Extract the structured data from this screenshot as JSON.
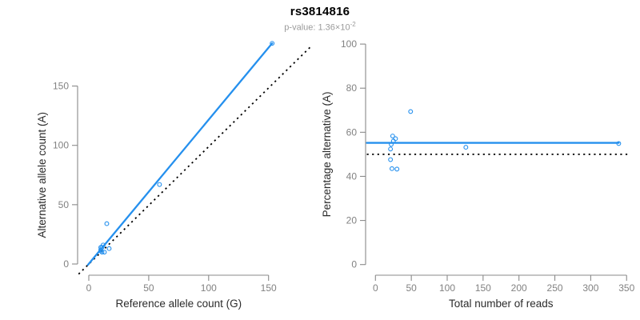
{
  "header": {
    "title": "rs3814816",
    "subtitle_base": "p-value: 1.36×10",
    "subtitle_exp": "-2"
  },
  "colors": {
    "accent_blue": "#2590ee",
    "dashed_black": "#000000",
    "axis_line": "#8a8a8a",
    "tick_label": "#828282",
    "axis_title": "#2b2b2b",
    "subtitle_gray": "#9a9a9a",
    "background": "#ffffff"
  },
  "chart_data": [
    {
      "type": "scatter",
      "panel": "left",
      "xlabel": "Reference allele count (G)",
      "ylabel": "Alternative allele count (A)",
      "xlim": [
        0,
        150
      ],
      "ylim": [
        0,
        150
      ],
      "xticks": [
        0,
        50,
        100,
        150
      ],
      "yticks": [
        0,
        50,
        100,
        150
      ],
      "grid": false,
      "legend": null,
      "point_color": "#2590ee",
      "points": [
        [
          10,
          14
        ],
        [
          12,
          16
        ],
        [
          11,
          14
        ],
        [
          10,
          12
        ],
        [
          10,
          11
        ],
        [
          11,
          10
        ],
        [
          13,
          10
        ],
        [
          17,
          13
        ],
        [
          15,
          34
        ],
        [
          59,
          67
        ],
        [
          153,
          186
        ]
      ],
      "solid_line": {
        "x1": -0.7,
        "y1": -0.7,
        "x2": 153,
        "y2": 186
      },
      "dashed_line": {
        "x1": -8.5,
        "y1": -8.5,
        "x2": 186,
        "y2": 184
      }
    },
    {
      "type": "scatter",
      "panel": "right",
      "xlabel": "Total number of reads",
      "ylabel": "Percentage alternative (A)",
      "xlim": [
        0,
        350
      ],
      "ylim": [
        0,
        100
      ],
      "xticks": [
        0,
        50,
        100,
        150,
        200,
        250,
        300,
        350
      ],
      "yticks": [
        0,
        20,
        40,
        60,
        80,
        100
      ],
      "grid": false,
      "legend": null,
      "point_color": "#2590ee",
      "points": [
        [
          24,
          58.3
        ],
        [
          28,
          57.1
        ],
        [
          25,
          56.0
        ],
        [
          22,
          54.5
        ],
        [
          21,
          52.4
        ],
        [
          21,
          47.6
        ],
        [
          23,
          43.5
        ],
        [
          30,
          43.3
        ],
        [
          49,
          69.4
        ],
        [
          126,
          53.2
        ],
        [
          339,
          54.9
        ]
      ],
      "solid_line": {
        "x1": -12,
        "y1": 55.2,
        "x2": 339,
        "y2": 55.2
      },
      "dashed_line": {
        "x1": -12,
        "y1": 50,
        "x2": 352,
        "y2": 50
      }
    }
  ]
}
